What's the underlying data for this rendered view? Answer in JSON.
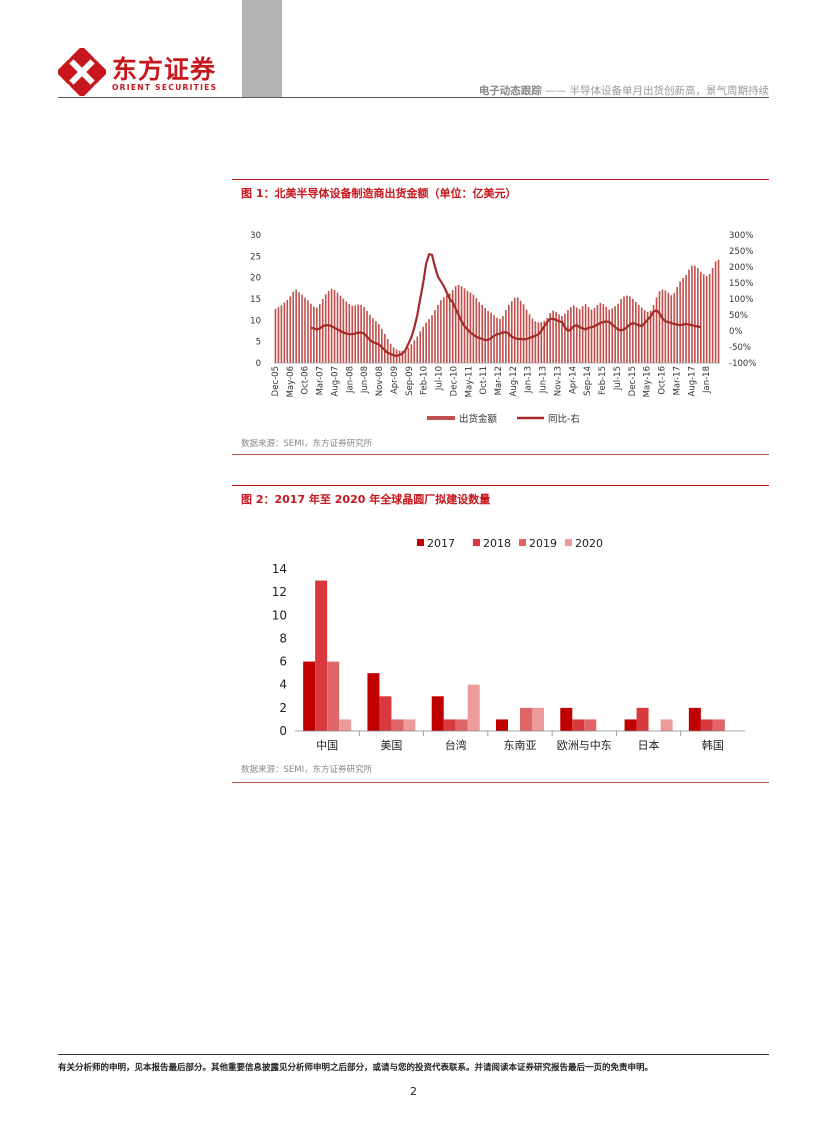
{
  "header": {
    "logo_cn": "东方证券",
    "logo_en": "ORIENT SECURITIES",
    "report_type": "电子动态跟踪",
    "separator": " —— ",
    "report_title": "半导体设备单月出货创新高，景气周期持续"
  },
  "figure1": {
    "title": "图 1：北美半导体设备制造商出货金额（单位：亿美元）",
    "source": "数据来源：SEMI，东方证券研究所"
  },
  "figure2": {
    "title": "图 2：2017 年至 2020 年全球晶圆厂拟建设数量",
    "source": "数据来源：SEMI，东方证券研究所"
  },
  "colors": {
    "brand_red": "#c8161d",
    "bar1": "#c0504d",
    "line1": "#a52a2a",
    "s2017": "#c00000",
    "s2018": "#d9393e",
    "s2019": "#e06666",
    "s2020": "#ec9a9a"
  },
  "footer": {
    "disclaimer": "有关分析师的申明，见本报告最后部分。其他重要信息披露见分析师申明之后部分，或请与您的投资代表联系。并请阅读本证券研究报告最后一页的免责申明。",
    "page_number": "2"
  },
  "chart_data": [
    {
      "type": "bar",
      "x_ticks": [
        "Dec-05",
        "May-06",
        "Oct-06",
        "Mar-07",
        "Aug-07",
        "Jan-08",
        "Jun-08",
        "Nov-08",
        "Apr-09",
        "Sep-09",
        "Feb-10",
        "Jul-10",
        "Dec-10",
        "May-11",
        "Oct-11",
        "Mar-12",
        "Aug-12",
        "Jan-13",
        "Jun-13",
        "Nov-13",
        "Apr-14",
        "Sep-14",
        "Feb-15",
        "Jul-15",
        "Dec-15",
        "May-16",
        "Oct-16",
        "Mar-17",
        "Aug-17",
        "Jan-18"
      ],
      "y_ticks": [
        "0",
        "5",
        "10",
        "15",
        "20",
        "25",
        "30"
      ],
      "y2_ticks": [
        "-100%",
        "-50%",
        "0%",
        "50%",
        "100%",
        "150%",
        "200%",
        "250%",
        "300%"
      ],
      "ylim": [
        0,
        30
      ],
      "y2lim": [
        -100,
        300
      ],
      "legend_position": "bottom",
      "series": [
        {
          "name": "出货金额",
          "kind": "bar",
          "axis": "left",
          "values": [
            12.7,
            13.1,
            13.5,
            14.2,
            14.8,
            15.6,
            16.7,
            17.2,
            16.6,
            16.0,
            15.3,
            14.7,
            13.9,
            13.2,
            13.0,
            13.8,
            15.0,
            16.1,
            16.9,
            17.4,
            17.1,
            16.5,
            15.8,
            15.1,
            14.4,
            13.8,
            13.4,
            13.5,
            13.7,
            13.6,
            13.1,
            12.2,
            11.3,
            10.5,
            9.8,
            9.1,
            8.0,
            6.8,
            5.6,
            4.5,
            3.7,
            3.2,
            2.9,
            2.8,
            3.1,
            3.6,
            4.4,
            5.3,
            6.2,
            7.4,
            8.5,
            9.5,
            10.3,
            11.2,
            12.4,
            13.6,
            14.7,
            15.4,
            15.9,
            16.3,
            17.1,
            18.0,
            18.3,
            18.0,
            17.5,
            16.9,
            16.5,
            16.0,
            15.2,
            14.3,
            13.6,
            12.9,
            12.2,
            11.8,
            11.2,
            10.6,
            10.3,
            11.0,
            12.4,
            13.6,
            14.5,
            15.3,
            15.4,
            14.6,
            13.8,
            12.5,
            11.4,
            10.4,
            9.8,
            9.5,
            9.6,
            9.9,
            10.6,
            11.7,
            12.3,
            12.0,
            11.4,
            11.0,
            11.6,
            12.4,
            13.1,
            13.5,
            13.0,
            12.6,
            13.3,
            13.8,
            13.1,
            12.5,
            12.9,
            13.6,
            14.1,
            13.8,
            13.2,
            12.5,
            12.8,
            13.3,
            13.9,
            15.0,
            15.6,
            15.8,
            15.6,
            15.0,
            14.3,
            13.6,
            13.0,
            12.4,
            12.0,
            12.3,
            13.6,
            15.4,
            16.8,
            17.2,
            17.0,
            16.5,
            15.9,
            16.4,
            17.8,
            19.1,
            19.9,
            20.6,
            21.9,
            22.8,
            22.8,
            22.2,
            21.4,
            20.8,
            20.4,
            20.9,
            22.3,
            23.8,
            24.2
          ]
        },
        {
          "name": "同比-右",
          "kind": "line",
          "axis": "right",
          "values": [
            null,
            null,
            null,
            null,
            null,
            null,
            null,
            null,
            null,
            null,
            null,
            null,
            10,
            8,
            5,
            8,
            15,
            18,
            18,
            15,
            10,
            5,
            0,
            -5,
            -8,
            -10,
            -10,
            -8,
            -5,
            -5,
            -8,
            -18,
            -28,
            -35,
            -38,
            -42,
            -50,
            -60,
            -68,
            -72,
            -76,
            -78,
            -75,
            -70,
            -60,
            -40,
            -20,
            10,
            50,
            100,
            150,
            210,
            240,
            238,
            200,
            170,
            155,
            140,
            120,
            100,
            90,
            70,
            50,
            30,
            15,
            5,
            -5,
            -12,
            -18,
            -22,
            -25,
            -28,
            -28,
            -22,
            -15,
            -10,
            -8,
            -5,
            -3,
            -8,
            -18,
            -22,
            -25,
            -25,
            -26,
            -25,
            -22,
            -18,
            -15,
            -10,
            0,
            15,
            28,
            38,
            38,
            35,
            30,
            28,
            12,
            0,
            5,
            15,
            18,
            12,
            8,
            5,
            10,
            12,
            15,
            20,
            25,
            28,
            30,
            28,
            20,
            12,
            5,
            2,
            5,
            12,
            20,
            25,
            22,
            18,
            15,
            25,
            35,
            45,
            60,
            65,
            55,
            40,
            30,
            28,
            25,
            22,
            20,
            18,
            20,
            22,
            20,
            18,
            16,
            14,
            12
          ]
        }
      ]
    },
    {
      "type": "bar",
      "categories": [
        "中国",
        "美国",
        "台湾",
        "东南亚",
        "欧洲与中东",
        "日本",
        "韩国"
      ],
      "ylim": [
        0,
        14
      ],
      "y_ticks": [
        "0",
        "2",
        "4",
        "6",
        "8",
        "10",
        "12",
        "14"
      ],
      "legend_position": "top",
      "series": [
        {
          "name": "2017",
          "values": [
            6,
            5,
            3,
            1,
            2,
            1,
            2
          ]
        },
        {
          "name": "2018",
          "values": [
            13,
            3,
            1,
            0,
            1,
            2,
            1
          ]
        },
        {
          "name": "2019",
          "values": [
            6,
            1,
            1,
            2,
            1,
            0,
            1
          ]
        },
        {
          "name": "2020",
          "values": [
            1,
            1,
            4,
            2,
            0,
            1,
            0
          ]
        }
      ]
    }
  ]
}
